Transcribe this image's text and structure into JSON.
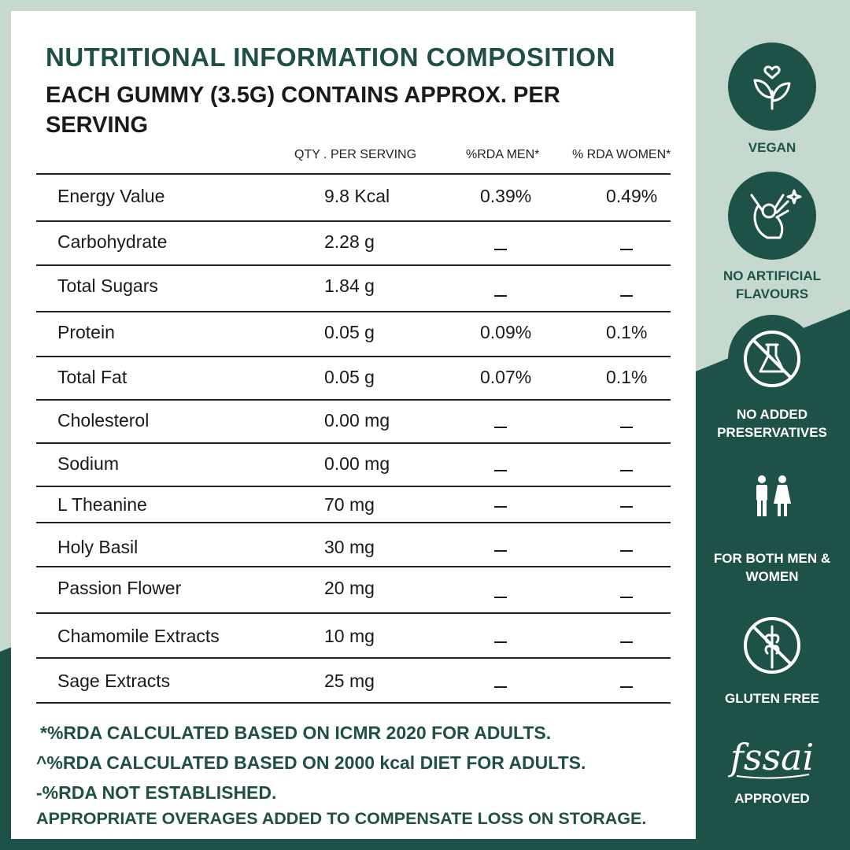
{
  "header": {
    "title": "NUTRITIONAL INFORMATION COMPOSITION",
    "subtitle": "EACH GUMMY (3.5G) CONTAINS APPROX. PER SERVING"
  },
  "table": {
    "columns": [
      "QTY . PER SERVING",
      "%RDA MEN*",
      "% RDA WOMEN*"
    ],
    "rows": [
      {
        "name": "Energy Value",
        "qty": "9.8 Kcal",
        "men": "0.39%",
        "women": "0.49%"
      },
      {
        "name": "Carbohydrate",
        "qty": "2.28 g",
        "men": "–",
        "women": "–"
      },
      {
        "name": "Total Sugars",
        "qty": "1.84 g",
        "men": "–",
        "women": "–"
      },
      {
        "name": "Protein",
        "qty": "0.05 g",
        "men": "0.09%",
        "women": "0.1%"
      },
      {
        "name": "Total Fat",
        "qty": "0.05 g",
        "men": "0.07%",
        "women": "0.1%"
      },
      {
        "name": "Cholesterol",
        "qty": "0.00 mg",
        "men": "–",
        "women": "–"
      },
      {
        "name": "Sodium",
        "qty": "0.00 mg",
        "men": "–",
        "women": "–"
      },
      {
        "name": "L Theanine",
        "qty": "70 mg",
        "men": "–",
        "women": "–"
      },
      {
        "name": "Holy Basil",
        "qty": "30 mg",
        "men": "–",
        "women": "–"
      },
      {
        "name": "Passion Flower",
        "qty": "20 mg",
        "men": "–",
        "women": "–"
      },
      {
        "name": "Chamomile Extracts",
        "qty": "10 mg",
        "men": "–",
        "women": "–"
      },
      {
        "name": "Sage Extracts",
        "qty": "25 mg",
        "men": "–",
        "women": "–"
      }
    ]
  },
  "notes": [
    "*%RDA CALCULATED BASED ON ICMR 2020 FOR ADULTS.",
    "^%RDA CALCULATED BASED ON 2000 kcal DIET FOR ADULTS.",
    "-%RDA NOT ESTABLISHED.",
    "APPROPRIATE OVERAGES ADDED TO COMPENSATE LOSS ON STORAGE."
  ],
  "badges": [
    {
      "label": "VEGAN",
      "icon": "leaf-heart-icon"
    },
    {
      "label": "NO ARTIFICIAL FLAVOURS",
      "icon": "ok-hand-icon"
    },
    {
      "label": "NO ADDED PRESERVATIVES",
      "icon": "no-flask-icon"
    },
    {
      "label": "FOR BOTH MEN & WOMEN",
      "icon": "man-woman-icon"
    },
    {
      "label": "GLUTEN FREE",
      "icon": "no-wheat-icon"
    },
    {
      "label": "APPROVED",
      "icon": "fssai-logo",
      "logo_text": "fssai"
    }
  ],
  "colors": {
    "dark_green": "#1e5148",
    "title_green": "#1f4f47",
    "light_green": "#c5d9cf",
    "card": "#ffffff"
  }
}
